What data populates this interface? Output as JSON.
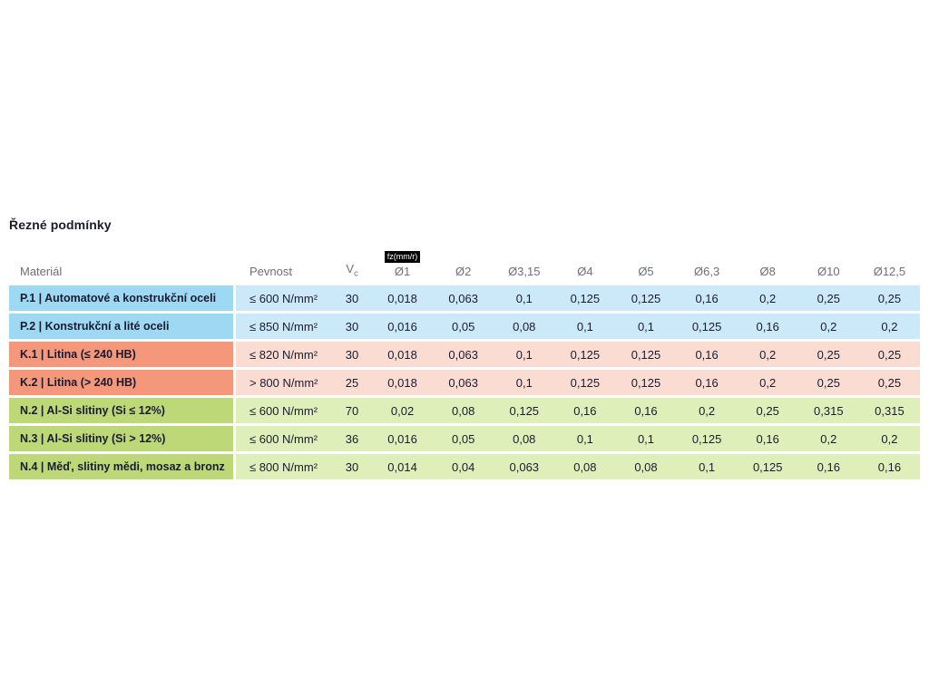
{
  "chart_data": {
    "type": "table",
    "title": "Řezné podmínky",
    "headers": {
      "material": "Materiál",
      "strength": "Pevnost",
      "vc_base": "V",
      "vc_sub": "c",
      "fz_badge": "fz(mm/r)",
      "diameters": [
        "Ø1",
        "Ø2",
        "Ø3,15",
        "Ø4",
        "Ø5",
        "Ø6,3",
        "Ø8",
        "Ø10",
        "Ø12,5"
      ]
    },
    "rows": [
      {
        "group": "P",
        "material": "P.1 | Automatové a konstrukční oceli",
        "strength": "≤ 600 N/mm²",
        "vc": "30",
        "fz_values": [
          "0,018",
          "0,063",
          "0,1",
          "0,125",
          "0,125",
          "0,16",
          "0,2",
          "0,25",
          "0,25"
        ]
      },
      {
        "group": "P",
        "material": "P.2 | Konstrukční a lité oceli",
        "strength": "≤ 850 N/mm²",
        "vc": "30",
        "fz_values": [
          "0,016",
          "0,05",
          "0,08",
          "0,1",
          "0,1",
          "0,125",
          "0,16",
          "0,2",
          "0,2"
        ]
      },
      {
        "group": "K",
        "material": "K.1 | Litina (≤ 240 HB)",
        "strength": "≤ 820 N/mm²",
        "vc": "30",
        "fz_values": [
          "0,018",
          "0,063",
          "0,1",
          "0,125",
          "0,125",
          "0,16",
          "0,2",
          "0,25",
          "0,25"
        ]
      },
      {
        "group": "K",
        "material": "K.2 | Litina (> 240 HB)",
        "strength": "> 800 N/mm²",
        "vc": "25",
        "fz_values": [
          "0,018",
          "0,063",
          "0,1",
          "0,125",
          "0,125",
          "0,16",
          "0,2",
          "0,25",
          "0,25"
        ]
      },
      {
        "group": "N",
        "material": "N.2 | Al-Si slitiny (Si ≤ 12%)",
        "strength": "≤ 600 N/mm²",
        "vc": "70",
        "fz_values": [
          "0,02",
          "0,08",
          "0,125",
          "0,16",
          "0,16",
          "0,2",
          "0,25",
          "0,315",
          "0,315"
        ]
      },
      {
        "group": "N",
        "material": "N.3 | Al-Si slitiny (Si > 12%)",
        "strength": "≤ 600 N/mm²",
        "vc": "36",
        "fz_values": [
          "0,016",
          "0,05",
          "0,08",
          "0,1",
          "0,1",
          "0,125",
          "0,16",
          "0,2",
          "0,2"
        ]
      },
      {
        "group": "N",
        "material": "N.4 | Měď, slitiny mědi, mosaz a bronz",
        "strength": "≤ 800 N/mm²",
        "vc": "30",
        "fz_values": [
          "0,014",
          "0,04",
          "0,063",
          "0,08",
          "0,08",
          "0,1",
          "0,125",
          "0,16",
          "0,16"
        ]
      }
    ]
  },
  "colors": {
    "P": {
      "label_bg": "#9ed9f4",
      "row_bg": "#cbe9f9"
    },
    "K": {
      "label_bg": "#f4977b",
      "row_bg": "#fadcd2"
    },
    "N": {
      "label_bg": "#bdd977",
      "row_bg": "#dfefba"
    }
  }
}
